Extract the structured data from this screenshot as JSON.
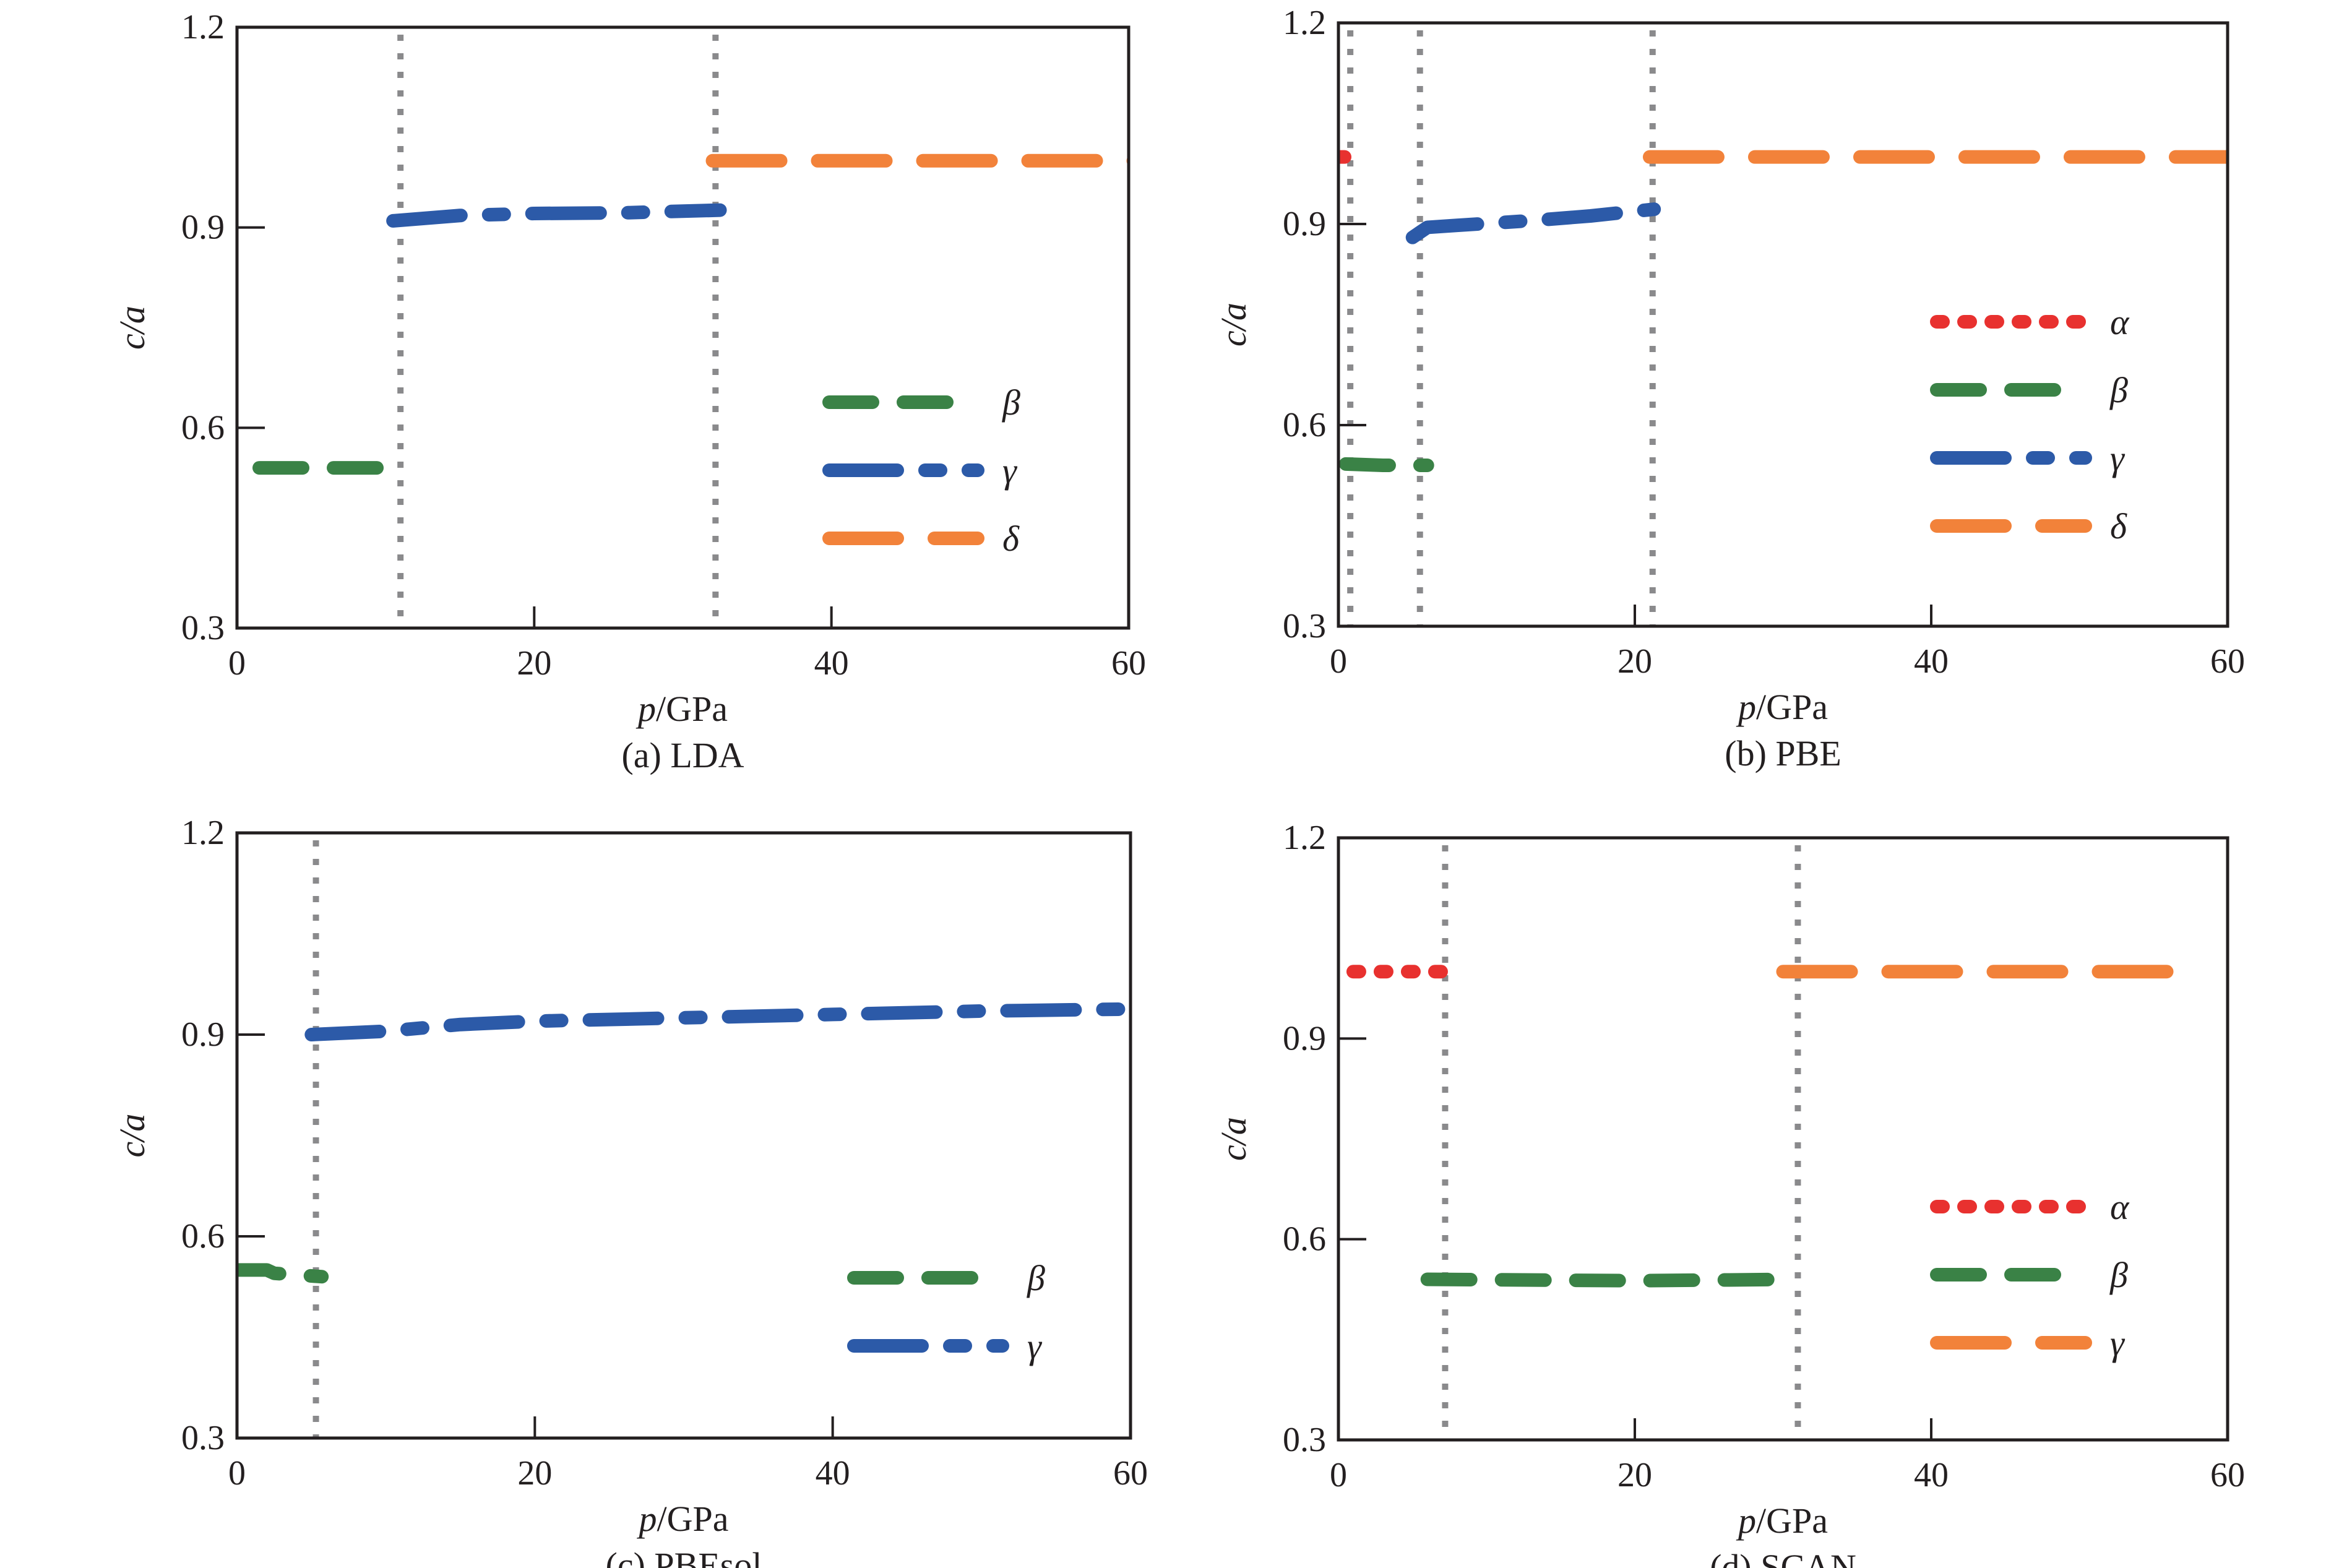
{
  "colors": {
    "alpha": "#e8312f",
    "beta": "#3a8246",
    "gamma": "#2c5aa8",
    "delta": "#f2823a",
    "vline": "#8a8a8c",
    "axis": "#231f20"
  },
  "chart_data": [
    {
      "type": "line",
      "caption": "(a) LDA",
      "xlabel_italic": "p",
      "xlabel_unit": "/GPa",
      "ylabel": "c/a",
      "xlim": [
        0,
        60
      ],
      "ylim": [
        0.3,
        1.2
      ],
      "xticks": [
        "0",
        "20",
        "40",
        "60"
      ],
      "yticks": [
        "0.3",
        "0.6",
        "0.9",
        "1.2"
      ],
      "vlines": [
        11,
        32.2
      ],
      "legend": "right",
      "series": [
        {
          "name": "β",
          "style": "beta",
          "points": [
            [
              1.5,
              0.54
            ],
            [
              11,
              0.54
            ]
          ]
        },
        {
          "name": "γ",
          "style": "gamma",
          "points": [
            [
              10.5,
              0.91
            ],
            [
              15,
              0.918
            ],
            [
              20,
              0.921
            ],
            [
              26,
              0.922
            ],
            [
              32.5,
              0.926
            ]
          ]
        },
        {
          "name": "δ",
          "style": "delta",
          "points": [
            [
              32,
              1.0
            ],
            [
              61,
              1.0
            ]
          ]
        }
      ]
    },
    {
      "type": "line",
      "caption": "(b) PBE",
      "xlabel_italic": "p",
      "xlabel_unit": "/GPa",
      "ylabel": "c/a",
      "xlim": [
        0,
        60
      ],
      "ylim": [
        0.3,
        1.2
      ],
      "xticks": [
        "0",
        "20",
        "40",
        "60"
      ],
      "yticks": [
        "0.3",
        "0.6",
        "0.9",
        "1.2"
      ],
      "vlines": [
        0.8,
        5.5,
        21.2
      ],
      "legend": "right",
      "series": [
        {
          "name": "α",
          "style": "alpha",
          "points": [
            [
              0,
              1.0
            ],
            [
              1.5,
              1.0
            ]
          ]
        },
        {
          "name": "β",
          "style": "beta",
          "points": [
            [
              0.5,
              0.542
            ],
            [
              3,
              0.54
            ],
            [
              6,
              0.54
            ]
          ]
        },
        {
          "name": "γ",
          "style": "gamma",
          "points": [
            [
              5,
              0.88
            ],
            [
              6,
              0.895
            ],
            [
              8,
              0.898
            ],
            [
              13,
              0.905
            ],
            [
              17,
              0.912
            ],
            [
              21.3,
              0.922
            ]
          ]
        },
        {
          "name": "δ",
          "style": "delta",
          "points": [
            [
              21,
              1.0
            ],
            [
              61,
              1.0
            ]
          ]
        }
      ]
    },
    {
      "type": "line",
      "caption": "(c) PBEsol",
      "xlabel_italic": "p",
      "xlabel_unit": "/GPa",
      "ylabel": "c/a",
      "xlim": [
        0,
        60
      ],
      "ylim": [
        0.3,
        1.2
      ],
      "xticks": [
        "0",
        "20",
        "40",
        "60"
      ],
      "yticks": [
        "0.3",
        "0.6",
        "0.9",
        "1.2"
      ],
      "vlines": [
        5.3
      ],
      "legend": "right",
      "series": [
        {
          "name": "β",
          "style": "beta",
          "points": [
            [
              0,
              0.55
            ],
            [
              2,
              0.55
            ],
            [
              2.5,
              0.545
            ],
            [
              5.7,
              0.54
            ]
          ]
        },
        {
          "name": "γ",
          "style": "gamma",
          "points": [
            [
              5,
              0.9
            ],
            [
              10,
              0.905
            ],
            [
              15,
              0.915
            ],
            [
              20,
              0.92
            ],
            [
              30,
              0.925
            ],
            [
              40,
              0.93
            ],
            [
              50,
              0.935
            ],
            [
              60,
              0.938
            ]
          ]
        }
      ]
    },
    {
      "type": "line",
      "caption": "(d) SCAN",
      "xlabel_italic": "p",
      "xlabel_unit": "/GPa",
      "ylabel": "c/a",
      "xlim": [
        0,
        60
      ],
      "ylim": [
        0.3,
        1.2
      ],
      "xticks": [
        "0",
        "20",
        "40",
        "60"
      ],
      "yticks": [
        "0.3",
        "0.6",
        "0.9",
        "1.2"
      ],
      "vlines": [
        7.2,
        31
      ],
      "legend": "right",
      "series": [
        {
          "name": "α",
          "style": "alpha",
          "points": [
            [
              1,
              1.0
            ],
            [
              7.5,
              1.0
            ]
          ]
        },
        {
          "name": "β",
          "style": "beta",
          "points": [
            [
              6,
              0.54
            ],
            [
              20,
              0.538
            ],
            [
              31,
              0.54
            ]
          ]
        },
        {
          "name": "γ",
          "style": "delta",
          "points": [
            [
              30,
              1.0
            ],
            [
              58,
              1.0
            ]
          ]
        }
      ]
    }
  ]
}
